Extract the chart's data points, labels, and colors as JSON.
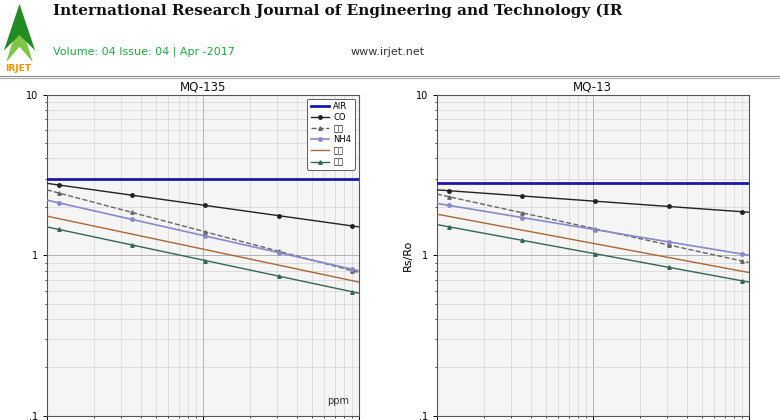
{
  "fig_width": 7.8,
  "fig_height": 4.2,
  "dpi": 100,
  "chart1_title": "MQ-135",
  "chart2_title": "MQ-13",
  "ylabel2": "Rs/Ro",
  "xlim": [
    10,
    1000
  ],
  "ylim": [
    0.1,
    10
  ],
  "series1": [
    {
      "name": "AIR",
      "color": "#1a1aaa",
      "lw": 2.0,
      "linestyle": "-",
      "marker": null,
      "y_at_10": 3.0,
      "y_at_1000": 3.0
    },
    {
      "name": "CO",
      "color": "#222222",
      "lw": 1.0,
      "linestyle": "-",
      "marker": "o",
      "markersize": 2.5,
      "y_at_10": 2.8,
      "y_at_1000": 1.5
    },
    {
      "name": "酒精",
      "color": "#666666",
      "lw": 1.0,
      "linestyle": "--",
      "marker": "^",
      "markersize": 2.5,
      "y_at_10": 2.55,
      "y_at_1000": 0.78
    },
    {
      "name": "NH4",
      "color": "#8888cc",
      "lw": 1.2,
      "linestyle": "-",
      "marker": "o",
      "markersize": 2.5,
      "y_at_10": 2.2,
      "y_at_1000": 0.8
    },
    {
      "name": "甲苯",
      "color": "#aa6633",
      "lw": 1.0,
      "linestyle": "-",
      "marker": null,
      "y_at_10": 1.75,
      "y_at_1000": 0.68
    },
    {
      "name": "丙酮",
      "color": "#336655",
      "lw": 1.0,
      "linestyle": "-",
      "marker": "^",
      "markersize": 2.5,
      "y_at_10": 1.5,
      "y_at_1000": 0.58
    }
  ],
  "series2": [
    {
      "name": "AIR",
      "color": "#1a1aaa",
      "lw": 2.0,
      "linestyle": "-",
      "marker": null,
      "y_at_10": 2.8,
      "y_at_1000": 2.8
    },
    {
      "name": "CO",
      "color": "#222222",
      "lw": 1.0,
      "linestyle": "-",
      "marker": "o",
      "markersize": 2.5,
      "y_at_10": 2.55,
      "y_at_1000": 1.85
    },
    {
      "name": "酒精",
      "color": "#666666",
      "lw": 1.0,
      "linestyle": "--",
      "marker": "^",
      "markersize": 2.5,
      "y_at_10": 2.4,
      "y_at_1000": 0.9
    },
    {
      "name": "NH4",
      "color": "#8888cc",
      "lw": 1.2,
      "linestyle": "-",
      "marker": "o",
      "markersize": 2.5,
      "y_at_10": 2.1,
      "y_at_1000": 1.0
    },
    {
      "name": "甲苯",
      "color": "#aa6633",
      "lw": 1.0,
      "linestyle": "-",
      "marker": null,
      "y_at_10": 1.8,
      "y_at_1000": 0.78
    },
    {
      "name": "丙酮",
      "color": "#336655",
      "lw": 1.0,
      "linestyle": "-",
      "marker": "^",
      "markersize": 2.5,
      "y_at_10": 1.55,
      "y_at_1000": 0.68
    }
  ],
  "bg_color": "#ffffff",
  "plot_bg_color": "#f5f5f5",
  "grid_color_major": "#aaaaaa",
  "grid_color_minor": "#cccccc",
  "header_title": "International Research Journal of Engineering and Technology (IR",
  "header_vol": "Volume: 04 Issue: 04 | Apr -2017",
  "header_url": "www.irjet.net"
}
